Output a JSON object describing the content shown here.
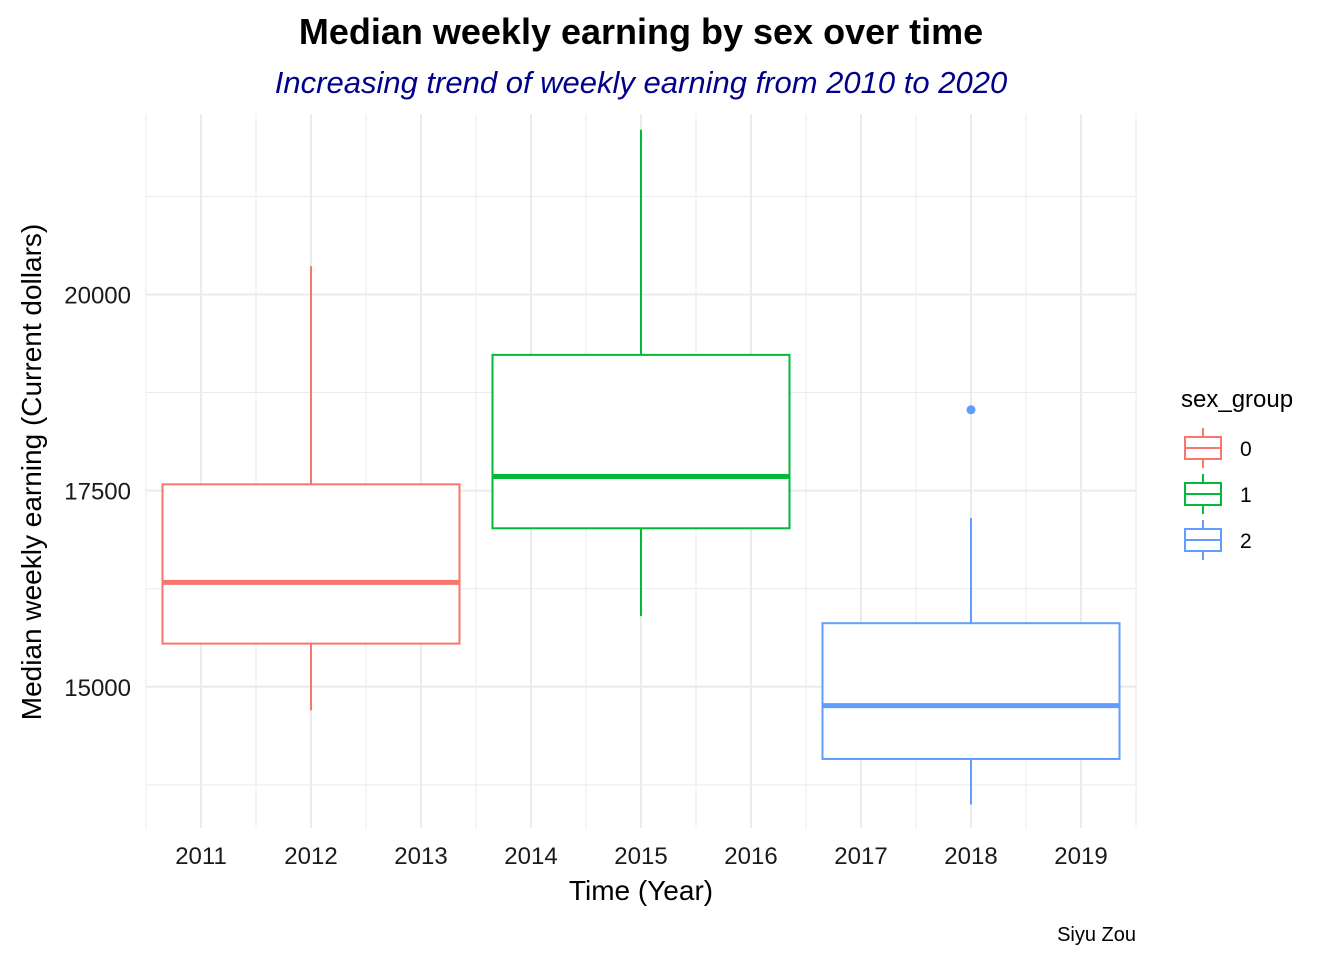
{
  "chart_data": {
    "type": "boxplot",
    "title": "Median weekly earning by sex over time",
    "subtitle": "Increasing trend of weekly earning from 2010 to 2020",
    "xlabel": "Time (Year)",
    "ylabel": "Median weekly earning (Current dollars)",
    "caption": "Siyu Zou",
    "x_ticks": [
      "2011",
      "2012",
      "2013",
      "2014",
      "2015",
      "2016",
      "2017",
      "2018",
      "2019"
    ],
    "x_range": [
      2010.5,
      2019.5
    ],
    "y_ticks": [
      15000,
      17500,
      20000
    ],
    "y_range": [
      13200,
      22300
    ],
    "grid": true,
    "legend": {
      "title": "sex_group",
      "placement": "right",
      "entries": [
        "0",
        "1",
        "2"
      ]
    },
    "colors": {
      "0": "#F8766D",
      "1": "#00BA38",
      "2": "#619CFF",
      "subtitle": "#00008B",
      "grid": "#EBEBEB"
    },
    "boxes": [
      {
        "group": "0",
        "x_from": 2010.65,
        "x_to": 2013.35,
        "x_center": 2012,
        "min": 14700,
        "q1": 15550,
        "median": 16330,
        "q3": 17580,
        "max": 20360,
        "outliers": []
      },
      {
        "group": "1",
        "x_from": 2013.65,
        "x_to": 2016.35,
        "x_center": 2015,
        "min": 15900,
        "q1": 17020,
        "median": 17680,
        "q3": 19230,
        "max": 22100,
        "outliers": []
      },
      {
        "group": "2",
        "x_from": 2016.65,
        "x_to": 2019.35,
        "x_center": 2018,
        "min": 13500,
        "q1": 14080,
        "median": 14760,
        "q3": 15810,
        "max": 17150,
        "outliers": [
          18530
        ]
      }
    ]
  }
}
